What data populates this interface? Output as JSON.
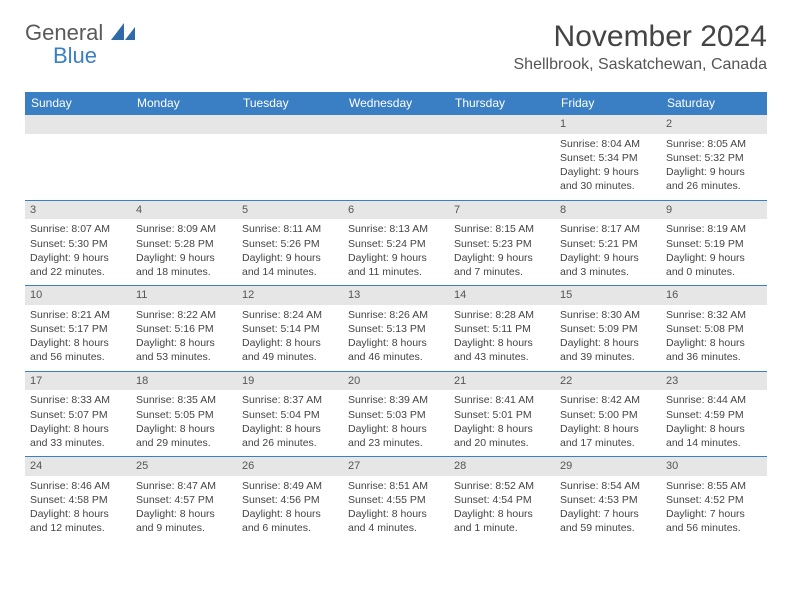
{
  "brand": {
    "word1": "General",
    "word2": "Blue"
  },
  "title": "November 2024",
  "location": "Shellbrook, Saskatchewan, Canada",
  "theme": {
    "header_bg": "#3a7fc4",
    "header_text": "#ffffff",
    "daynum_bg": "#e6e6e6",
    "row_border": "#3a7fc4",
    "body_text": "#444444",
    "page_bg": "#ffffff",
    "font_family": "Arial, Helvetica, sans-serif",
    "title_fontsize_pt": 22,
    "location_fontsize_pt": 12,
    "dayhead_fontsize_pt": 9,
    "cell_fontsize_pt": 8
  },
  "day_headers": [
    "Sunday",
    "Monday",
    "Tuesday",
    "Wednesday",
    "Thursday",
    "Friday",
    "Saturday"
  ],
  "weeks": [
    [
      {
        "n": "",
        "sunrise": "",
        "sunset": "",
        "daylight": ""
      },
      {
        "n": "",
        "sunrise": "",
        "sunset": "",
        "daylight": ""
      },
      {
        "n": "",
        "sunrise": "",
        "sunset": "",
        "daylight": ""
      },
      {
        "n": "",
        "sunrise": "",
        "sunset": "",
        "daylight": ""
      },
      {
        "n": "",
        "sunrise": "",
        "sunset": "",
        "daylight": ""
      },
      {
        "n": "1",
        "sunrise": "Sunrise: 8:04 AM",
        "sunset": "Sunset: 5:34 PM",
        "daylight": "Daylight: 9 hours and 30 minutes."
      },
      {
        "n": "2",
        "sunrise": "Sunrise: 8:05 AM",
        "sunset": "Sunset: 5:32 PM",
        "daylight": "Daylight: 9 hours and 26 minutes."
      }
    ],
    [
      {
        "n": "3",
        "sunrise": "Sunrise: 8:07 AM",
        "sunset": "Sunset: 5:30 PM",
        "daylight": "Daylight: 9 hours and 22 minutes."
      },
      {
        "n": "4",
        "sunrise": "Sunrise: 8:09 AM",
        "sunset": "Sunset: 5:28 PM",
        "daylight": "Daylight: 9 hours and 18 minutes."
      },
      {
        "n": "5",
        "sunrise": "Sunrise: 8:11 AM",
        "sunset": "Sunset: 5:26 PM",
        "daylight": "Daylight: 9 hours and 14 minutes."
      },
      {
        "n": "6",
        "sunrise": "Sunrise: 8:13 AM",
        "sunset": "Sunset: 5:24 PM",
        "daylight": "Daylight: 9 hours and 11 minutes."
      },
      {
        "n": "7",
        "sunrise": "Sunrise: 8:15 AM",
        "sunset": "Sunset: 5:23 PM",
        "daylight": "Daylight: 9 hours and 7 minutes."
      },
      {
        "n": "8",
        "sunrise": "Sunrise: 8:17 AM",
        "sunset": "Sunset: 5:21 PM",
        "daylight": "Daylight: 9 hours and 3 minutes."
      },
      {
        "n": "9",
        "sunrise": "Sunrise: 8:19 AM",
        "sunset": "Sunset: 5:19 PM",
        "daylight": "Daylight: 9 hours and 0 minutes."
      }
    ],
    [
      {
        "n": "10",
        "sunrise": "Sunrise: 8:21 AM",
        "sunset": "Sunset: 5:17 PM",
        "daylight": "Daylight: 8 hours and 56 minutes."
      },
      {
        "n": "11",
        "sunrise": "Sunrise: 8:22 AM",
        "sunset": "Sunset: 5:16 PM",
        "daylight": "Daylight: 8 hours and 53 minutes."
      },
      {
        "n": "12",
        "sunrise": "Sunrise: 8:24 AM",
        "sunset": "Sunset: 5:14 PM",
        "daylight": "Daylight: 8 hours and 49 minutes."
      },
      {
        "n": "13",
        "sunrise": "Sunrise: 8:26 AM",
        "sunset": "Sunset: 5:13 PM",
        "daylight": "Daylight: 8 hours and 46 minutes."
      },
      {
        "n": "14",
        "sunrise": "Sunrise: 8:28 AM",
        "sunset": "Sunset: 5:11 PM",
        "daylight": "Daylight: 8 hours and 43 minutes."
      },
      {
        "n": "15",
        "sunrise": "Sunrise: 8:30 AM",
        "sunset": "Sunset: 5:09 PM",
        "daylight": "Daylight: 8 hours and 39 minutes."
      },
      {
        "n": "16",
        "sunrise": "Sunrise: 8:32 AM",
        "sunset": "Sunset: 5:08 PM",
        "daylight": "Daylight: 8 hours and 36 minutes."
      }
    ],
    [
      {
        "n": "17",
        "sunrise": "Sunrise: 8:33 AM",
        "sunset": "Sunset: 5:07 PM",
        "daylight": "Daylight: 8 hours and 33 minutes."
      },
      {
        "n": "18",
        "sunrise": "Sunrise: 8:35 AM",
        "sunset": "Sunset: 5:05 PM",
        "daylight": "Daylight: 8 hours and 29 minutes."
      },
      {
        "n": "19",
        "sunrise": "Sunrise: 8:37 AM",
        "sunset": "Sunset: 5:04 PM",
        "daylight": "Daylight: 8 hours and 26 minutes."
      },
      {
        "n": "20",
        "sunrise": "Sunrise: 8:39 AM",
        "sunset": "Sunset: 5:03 PM",
        "daylight": "Daylight: 8 hours and 23 minutes."
      },
      {
        "n": "21",
        "sunrise": "Sunrise: 8:41 AM",
        "sunset": "Sunset: 5:01 PM",
        "daylight": "Daylight: 8 hours and 20 minutes."
      },
      {
        "n": "22",
        "sunrise": "Sunrise: 8:42 AM",
        "sunset": "Sunset: 5:00 PM",
        "daylight": "Daylight: 8 hours and 17 minutes."
      },
      {
        "n": "23",
        "sunrise": "Sunrise: 8:44 AM",
        "sunset": "Sunset: 4:59 PM",
        "daylight": "Daylight: 8 hours and 14 minutes."
      }
    ],
    [
      {
        "n": "24",
        "sunrise": "Sunrise: 8:46 AM",
        "sunset": "Sunset: 4:58 PM",
        "daylight": "Daylight: 8 hours and 12 minutes."
      },
      {
        "n": "25",
        "sunrise": "Sunrise: 8:47 AM",
        "sunset": "Sunset: 4:57 PM",
        "daylight": "Daylight: 8 hours and 9 minutes."
      },
      {
        "n": "26",
        "sunrise": "Sunrise: 8:49 AM",
        "sunset": "Sunset: 4:56 PM",
        "daylight": "Daylight: 8 hours and 6 minutes."
      },
      {
        "n": "27",
        "sunrise": "Sunrise: 8:51 AM",
        "sunset": "Sunset: 4:55 PM",
        "daylight": "Daylight: 8 hours and 4 minutes."
      },
      {
        "n": "28",
        "sunrise": "Sunrise: 8:52 AM",
        "sunset": "Sunset: 4:54 PM",
        "daylight": "Daylight: 8 hours and 1 minute."
      },
      {
        "n": "29",
        "sunrise": "Sunrise: 8:54 AM",
        "sunset": "Sunset: 4:53 PM",
        "daylight": "Daylight: 7 hours and 59 minutes."
      },
      {
        "n": "30",
        "sunrise": "Sunrise: 8:55 AM",
        "sunset": "Sunset: 4:52 PM",
        "daylight": "Daylight: 7 hours and 56 minutes."
      }
    ]
  ]
}
